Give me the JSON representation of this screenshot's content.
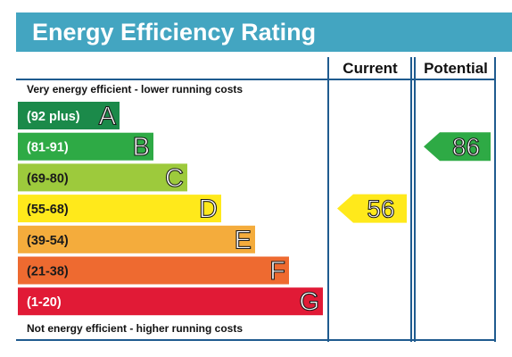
{
  "title": "Energy Efficiency Rating",
  "chart_data": {
    "type": "bar",
    "columns": [
      "Current",
      "Potential"
    ],
    "top_note": "Very energy efficient - lower running costs",
    "bottom_note": "Not energy efficient - higher running costs",
    "bands": [
      {
        "letter": "A",
        "range": "(92 plus)",
        "min": 92,
        "max": 100,
        "color": "#1b8a4a",
        "text_color": "#ffffff"
      },
      {
        "letter": "B",
        "range": "(81-91)",
        "min": 81,
        "max": 91,
        "color": "#2eaa45",
        "text_color": "#ffffff"
      },
      {
        "letter": "C",
        "range": "(69-80)",
        "min": 69,
        "max": 80,
        "color": "#9dca3c",
        "text_color": "#1a1a1a"
      },
      {
        "letter": "D",
        "range": "(55-68)",
        "min": 55,
        "max": 68,
        "color": "#ffe91b",
        "text_color": "#1a1a1a"
      },
      {
        "letter": "E",
        "range": "(39-54)",
        "min": 39,
        "max": 54,
        "color": "#f4ac3c",
        "text_color": "#1a1a1a"
      },
      {
        "letter": "F",
        "range": "(21-38)",
        "min": 21,
        "max": 38,
        "color": "#ee6a30",
        "text_color": "#1a1a1a"
      },
      {
        "letter": "G",
        "range": "(1-20)",
        "min": 1,
        "max": 20,
        "color": "#e11a36",
        "text_color": "#ffffff"
      }
    ],
    "ratings": [
      {
        "name": "Current",
        "value": 56,
        "band": "D",
        "color": "#ffe91b"
      },
      {
        "name": "Potential",
        "value": 86,
        "band": "B",
        "color": "#2eaa45"
      }
    ],
    "colors": {
      "frame": "#1f5b8f",
      "title_bar": "#43a5c1"
    }
  }
}
